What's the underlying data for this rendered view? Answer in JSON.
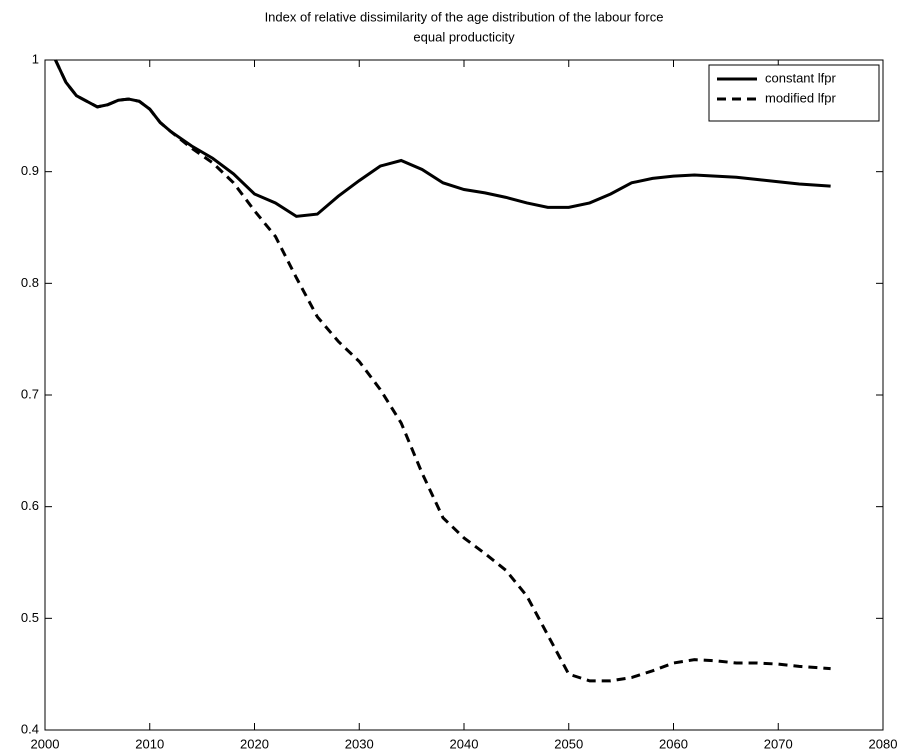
{
  "chart_data": {
    "type": "line",
    "title": [
      "Index of relative dissimilarity of the age distribution of the labour force",
      "equal producticity"
    ],
    "x": [
      2001,
      2002,
      2003,
      2005,
      2006,
      2007,
      2008,
      2009,
      2010,
      2011,
      2012,
      2014,
      2016,
      2018,
      2020,
      2022,
      2024,
      2026,
      2028,
      2030,
      2032,
      2034,
      2036,
      2038,
      2040,
      2042,
      2044,
      2046,
      2048,
      2050,
      2052,
      2054,
      2056,
      2058,
      2060,
      2062,
      2064,
      2066,
      2068,
      2070,
      2072,
      2075
    ],
    "series": [
      {
        "name": "constant lfpr",
        "color": "#000000",
        "linestyle": "solid",
        "values": [
          1.0,
          0.98,
          0.968,
          0.958,
          0.96,
          0.964,
          0.965,
          0.963,
          0.956,
          0.944,
          0.936,
          0.923,
          0.912,
          0.898,
          0.88,
          0.872,
          0.86,
          0.862,
          0.878,
          0.892,
          0.905,
          0.91,
          0.902,
          0.89,
          0.884,
          0.881,
          0.877,
          0.872,
          0.868,
          0.868,
          0.872,
          0.88,
          0.89,
          0.894,
          0.896,
          0.897,
          0.896,
          0.895,
          0.893,
          0.891,
          0.889,
          0.887
        ]
      },
      {
        "name": "modified lfpr",
        "color": "#000000",
        "linestyle": "dashed",
        "values": [
          1.0,
          0.98,
          0.968,
          0.958,
          0.96,
          0.964,
          0.965,
          0.963,
          0.956,
          0.944,
          0.936,
          0.921,
          0.908,
          0.89,
          0.865,
          0.842,
          0.805,
          0.77,
          0.748,
          0.73,
          0.705,
          0.675,
          0.63,
          0.59,
          0.572,
          0.558,
          0.543,
          0.52,
          0.485,
          0.45,
          0.444,
          0.444,
          0.447,
          0.453,
          0.46,
          0.463,
          0.462,
          0.46,
          0.46,
          0.459,
          0.457,
          0.455
        ]
      }
    ],
    "xlim": [
      2000,
      2080
    ],
    "xticks": [
      2000,
      2010,
      2020,
      2030,
      2040,
      2050,
      2060,
      2070,
      2080
    ],
    "ylim": [
      0.4,
      1
    ],
    "yticks": [
      0.4,
      0.5,
      0.6,
      0.7,
      0.8,
      0.9,
      1
    ],
    "grid": false,
    "legend": "upper right"
  }
}
